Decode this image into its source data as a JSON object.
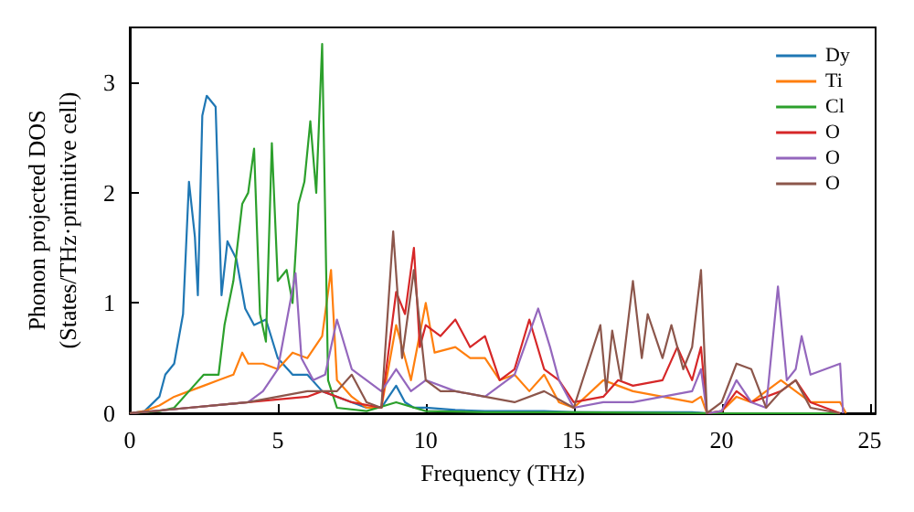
{
  "chart_data": {
    "type": "line",
    "xlabel": "Frequency (THz)",
    "ylabel": "Phonon projected DOS\n(States/THz·primitive cell)",
    "xlim": [
      0,
      25.2
    ],
    "ylim": [
      0,
      3.5
    ],
    "xticks": [
      0,
      5,
      10,
      15,
      20,
      25
    ],
    "yticks": [
      0,
      1,
      2,
      3
    ],
    "grid": false,
    "legend": "top right",
    "marker": "none",
    "line_style": "solid",
    "series": [
      {
        "name": "Dy",
        "color": "#1f77b4",
        "x": [
          0,
          0.5,
          1,
          1.2,
          1.5,
          1.8,
          2,
          2.2,
          2.3,
          2.45,
          2.6,
          2.9,
          3.1,
          3.3,
          3.6,
          3.9,
          4.2,
          4.6,
          5,
          5.5,
          6,
          6.5,
          7,
          7.5,
          8,
          8.5,
          9,
          9.3,
          9.6,
          10,
          11,
          12,
          13,
          14,
          15,
          16,
          17,
          18,
          19,
          19.5,
          20
        ],
        "values": [
          0,
          0.02,
          0.15,
          0.35,
          0.45,
          0.9,
          2.1,
          1.6,
          1.07,
          2.7,
          2.88,
          2.78,
          1.07,
          1.56,
          1.4,
          0.95,
          0.8,
          0.85,
          0.5,
          0.35,
          0.35,
          0.2,
          0.15,
          0.1,
          0.05,
          0.05,
          0.25,
          0.1,
          0.05,
          0.05,
          0.03,
          0.02,
          0.02,
          0.02,
          0.01,
          0.01,
          0.01,
          0.01,
          0.01,
          0,
          0
        ]
      },
      {
        "name": "Ti",
        "color": "#ff7f0e",
        "x": [
          0,
          0.5,
          1,
          1.5,
          2,
          2.5,
          3,
          3.5,
          3.8,
          4,
          4.5,
          5,
          5.5,
          6,
          6.5,
          6.8,
          7,
          7.5,
          8,
          8.5,
          9,
          9.5,
          10,
          10.3,
          11,
          11.5,
          12,
          12.5,
          13,
          13.5,
          14,
          14.5,
          15,
          16,
          16.5,
          17,
          18,
          19,
          19.3,
          19.5,
          20,
          20.5,
          21,
          22,
          22.5,
          23,
          24,
          24.2
        ],
        "values": [
          0,
          0.02,
          0.07,
          0.15,
          0.2,
          0.25,
          0.3,
          0.35,
          0.55,
          0.45,
          0.45,
          0.4,
          0.55,
          0.5,
          0.7,
          1.3,
          0.3,
          0.15,
          0.05,
          0.05,
          0.8,
          0.3,
          1.0,
          0.55,
          0.6,
          0.5,
          0.5,
          0.3,
          0.35,
          0.2,
          0.35,
          0.1,
          0.05,
          0.3,
          0.25,
          0.2,
          0.15,
          0.1,
          0.15,
          0,
          0.02,
          0.15,
          0.1,
          0.3,
          0.2,
          0.1,
          0.1,
          0
        ]
      },
      {
        "name": "Cl",
        "color": "#2ca02c",
        "x": [
          0,
          1,
          1.5,
          2,
          2.5,
          3,
          3.2,
          3.5,
          3.8,
          4,
          4.2,
          4.4,
          4.6,
          4.8,
          5,
          5.3,
          5.5,
          5.7,
          5.9,
          6.1,
          6.3,
          6.5,
          6.7,
          7,
          8,
          9,
          10,
          12,
          15,
          20,
          24
        ],
        "values": [
          0,
          0.02,
          0.05,
          0.2,
          0.35,
          0.35,
          0.8,
          1.2,
          1.9,
          2.0,
          2.4,
          0.9,
          0.65,
          2.45,
          1.2,
          1.3,
          1.0,
          1.9,
          2.1,
          2.65,
          2.0,
          3.35,
          0.3,
          0.05,
          0.02,
          0.1,
          0.02,
          0.01,
          0.01,
          0,
          0
        ]
      },
      {
        "name": "O",
        "color": "#d62728",
        "x": [
          0,
          2,
          4,
          6,
          6.5,
          7.5,
          8.5,
          9,
          9.3,
          9.6,
          9.8,
          10,
          10.5,
          11,
          11.5,
          12,
          12.5,
          13,
          13.5,
          14,
          14.5,
          15,
          16,
          16.5,
          17,
          18,
          18.5,
          19,
          19.3,
          19.5,
          20,
          20.5,
          21,
          22,
          22.5,
          23,
          24
        ],
        "values": [
          0,
          0.05,
          0.1,
          0.15,
          0.2,
          0.1,
          0.05,
          1.1,
          0.9,
          1.5,
          0.6,
          0.8,
          0.7,
          0.85,
          0.6,
          0.7,
          0.3,
          0.4,
          0.85,
          0.4,
          0.3,
          0.1,
          0.15,
          0.3,
          0.25,
          0.3,
          0.6,
          0.3,
          0.6,
          0,
          0.02,
          0.2,
          0.1,
          0.2,
          0.3,
          0.1,
          0
        ]
      },
      {
        "name": "O",
        "color": "#9467bd",
        "x": [
          0,
          2,
          4,
          4.5,
          5,
          5.6,
          5.8,
          6.2,
          6.6,
          7,
          7.5,
          8,
          8.5,
          9,
          9.5,
          10,
          11,
          12,
          13,
          13.8,
          14.2,
          14.5,
          15,
          16,
          17,
          18,
          19,
          19.3,
          19.5,
          20,
          20.5,
          21,
          21.5,
          21.9,
          22.2,
          22.5,
          22.7,
          23,
          24,
          24.1
        ],
        "values": [
          0,
          0.05,
          0.1,
          0.2,
          0.4,
          1.27,
          0.5,
          0.3,
          0.35,
          0.85,
          0.4,
          0.3,
          0.2,
          0.4,
          0.2,
          0.3,
          0.2,
          0.15,
          0.35,
          0.95,
          0.6,
          0.3,
          0.05,
          0.1,
          0.1,
          0.15,
          0.2,
          0.4,
          0,
          0.02,
          0.3,
          0.1,
          0.05,
          1.15,
          0.3,
          0.4,
          0.7,
          0.35,
          0.45,
          0
        ]
      },
      {
        "name": "O",
        "color": "#8c564b",
        "x": [
          0,
          2,
          4,
          6,
          7,
          7.5,
          8,
          8.5,
          8.9,
          9.2,
          9.6,
          10,
          10.5,
          11,
          12,
          13,
          14,
          15,
          15.9,
          16.1,
          16.3,
          16.6,
          17,
          17.3,
          17.5,
          18,
          18.3,
          18.7,
          19,
          19.3,
          19.5,
          20,
          20.5,
          21,
          21.5,
          22,
          22.5,
          23,
          24
        ],
        "values": [
          0,
          0.05,
          0.1,
          0.2,
          0.2,
          0.35,
          0.1,
          0.05,
          1.65,
          0.5,
          1.3,
          0.3,
          0.2,
          0.2,
          0.15,
          0.1,
          0.2,
          0.05,
          0.8,
          0.2,
          0.75,
          0.3,
          1.2,
          0.5,
          0.9,
          0.5,
          0.8,
          0.4,
          0.6,
          1.3,
          0,
          0.1,
          0.45,
          0.4,
          0.05,
          0.2,
          0.3,
          0.05,
          0
        ]
      }
    ]
  }
}
